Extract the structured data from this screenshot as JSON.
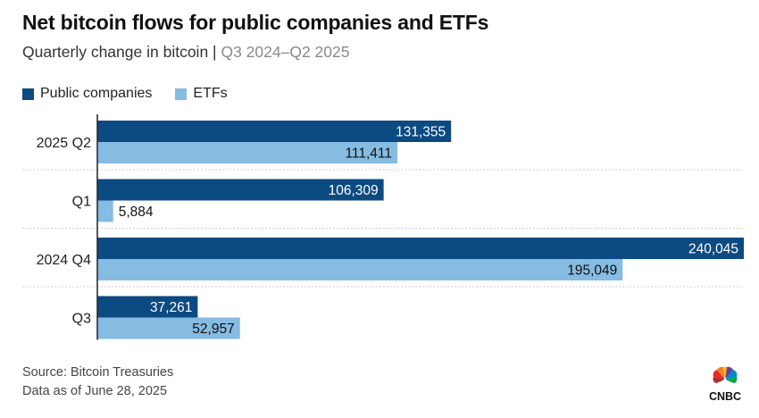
{
  "header": {
    "title": "Net bitcoin flows for public companies and ETFs",
    "subtitle_main": "Quarterly change in bitcoin",
    "subtitle_sep": "|",
    "subtitle_range": "Q3 2024–Q2 2025"
  },
  "footer": {
    "source": "Source: Bitcoin Treasuries",
    "date_note": "Data as of June 28, 2025"
  },
  "logo": {
    "text": "CNBC",
    "icon": "peacock-logo-icon"
  },
  "colors": {
    "public_companies": "#0c4a82",
    "etfs": "#86bbe2"
  },
  "chart_data": {
    "type": "bar",
    "orientation": "horizontal",
    "title": "Net bitcoin flows for public companies and ETFs",
    "subtitle": "Quarterly change in bitcoin | Q3 2024–Q2 2025",
    "categories": [
      "2025 Q2",
      "Q1",
      "2024 Q4",
      "Q3"
    ],
    "series": [
      {
        "name": "Public companies",
        "color": "#0c4a82",
        "values": [
          131355,
          106309,
          240045,
          37261
        ]
      },
      {
        "name": "ETFs",
        "color": "#86bbe2",
        "values": [
          111411,
          5884,
          195049,
          52957
        ]
      }
    ],
    "xlim": [
      0,
      240045
    ],
    "legend_position": "top-left",
    "grid": false,
    "data_labels": true
  }
}
